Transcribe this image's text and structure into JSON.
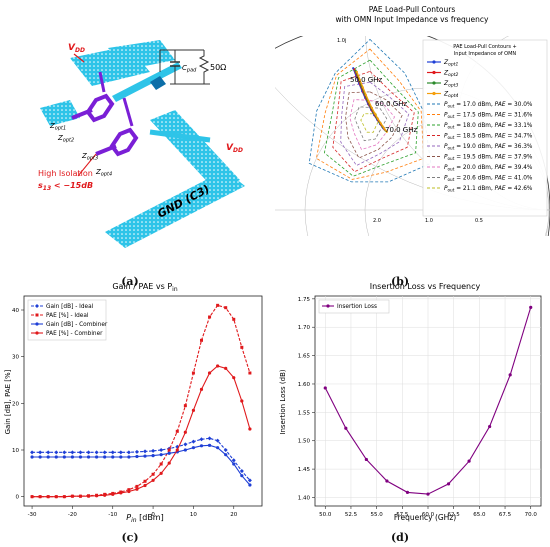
{
  "captions": [
    "(a)",
    "(b)",
    "(c)",
    "(d)"
  ],
  "panel_a": {
    "vdd_top": "V",
    "vdd_top_sub": "DD",
    "vdd_right": "V",
    "vdd_right_sub": "DD",
    "cpad": "C",
    "cpad_sub": "pad",
    "res": "50Ω",
    "z1": "Z",
    "z1_sub": "opt1",
    "z2": "Z",
    "z2_sub": "opt2",
    "z3": "Z",
    "z3_sub": "opt3",
    "z4": "Z",
    "z4_sub": "opt4",
    "iso1": "High Isolation",
    "iso2": "s",
    "iso2_sub": "13",
    "iso2_rest": " < −15dB",
    "gnd": "GND (C3)",
    "colors": {
      "metal": "#2ec4e8",
      "trace": "#7a1fd6",
      "highlight": "#e0191c"
    }
  },
  "chart_data": [
    {
      "type": "smith",
      "title": "PAE Load-Pull Contours",
      "subtitle": "with OMN Input Impedance vs frequency",
      "legend_title": "PAE Load-Pull Contours +",
      "legend_title2": "Input Impedance of OMN",
      "grid_labels": [
        "1.0j",
        "2.0",
        "1.0",
        "0.5"
      ],
      "freq_labels": [
        "50.0 GHz",
        "60.0 GHz",
        "70.0 GHz"
      ],
      "series": [
        {
          "name": "Z",
          "sub": "opt1",
          "color": "#1f3fd6"
        },
        {
          "name": "Z",
          "sub": "opt2",
          "color": "#e0191c"
        },
        {
          "name": "Z",
          "sub": "opt3",
          "color": "#2a8a2a"
        },
        {
          "name": "Z",
          "sub": "opt4",
          "color": "#f59e0b"
        }
      ],
      "contours": [
        {
          "pout": "17.0 dBm",
          "pae": "30.0%",
          "color": "#1f77b4"
        },
        {
          "pout": "17.5 dBm",
          "pae": "31.6%",
          "color": "#ff7f0e"
        },
        {
          "pout": "18.0 dBm",
          "pae": "33.1%",
          "color": "#2ca02c"
        },
        {
          "pout": "18.5 dBm",
          "pae": "34.7%",
          "color": "#d62728"
        },
        {
          "pout": "19.0 dBm",
          "pae": "36.3%",
          "color": "#9467bd"
        },
        {
          "pout": "19.5 dBm",
          "pae": "37.9%",
          "color": "#8c564b"
        },
        {
          "pout": "20.0 dBm",
          "pae": "39.4%",
          "color": "#e377c2"
        },
        {
          "pout": "20.6 dBm",
          "pae": "41.0%",
          "color": "#7f7f7f"
        },
        {
          "pout": "21.1 dBm",
          "pae": "42.6%",
          "color": "#bcbd22"
        }
      ]
    },
    {
      "type": "line",
      "title": "Gain / PAE vs P",
      "title_sub": "in",
      "xlabel": "P",
      "xlabel_sub": "in",
      "xlabel_unit": " [dBm]",
      "ylabel": "Gain [dB], PAE [%]",
      "xlim": [
        -32,
        27
      ],
      "ylim": [
        -2,
        43
      ],
      "xticks": [
        -30,
        -20,
        -10,
        0,
        10,
        20
      ],
      "yticks": [
        0,
        10,
        20,
        30,
        40
      ],
      "x": [
        -30,
        -28,
        -26,
        -24,
        -22,
        -20,
        -18,
        -16,
        -14,
        -12,
        -10,
        -8,
        -6,
        -4,
        -2,
        0,
        2,
        4,
        6,
        8,
        10,
        12,
        14,
        16,
        18,
        20,
        22,
        24
      ],
      "series": [
        {
          "name": "Gain [dB] - Ideal",
          "color": "#1f3fd6",
          "marker": "diamond",
          "dash": true,
          "values": [
            9.5,
            9.5,
            9.5,
            9.5,
            9.5,
            9.5,
            9.5,
            9.5,
            9.5,
            9.5,
            9.5,
            9.5,
            9.5,
            9.6,
            9.7,
            9.8,
            10.0,
            10.3,
            10.7,
            11.2,
            11.8,
            12.3,
            12.5,
            12.0,
            10.0,
            7.8,
            5.5,
            3.5
          ]
        },
        {
          "name": "PAE [%] - Ideal",
          "color": "#e0191c",
          "marker": "square",
          "dash": true,
          "values": [
            0.0,
            0.0,
            0.0,
            0.0,
            0.0,
            0.1,
            0.1,
            0.2,
            0.3,
            0.5,
            0.7,
            1.0,
            1.5,
            2.2,
            3.3,
            4.8,
            7.0,
            10.0,
            14.0,
            19.5,
            26.5,
            33.5,
            38.5,
            41.0,
            40.5,
            38.0,
            32.0,
            26.5
          ]
        },
        {
          "name": "Gain [dB] - Combiner",
          "color": "#1f3fd6",
          "marker": "circle",
          "dash": false,
          "values": [
            8.5,
            8.5,
            8.5,
            8.5,
            8.5,
            8.5,
            8.5,
            8.5,
            8.5,
            8.5,
            8.5,
            8.5,
            8.5,
            8.6,
            8.7,
            8.8,
            9.0,
            9.3,
            9.6,
            10.0,
            10.5,
            10.9,
            11.0,
            10.5,
            9.0,
            7.0,
            4.5,
            2.5
          ]
        },
        {
          "name": "PAE [%] - Combiner",
          "color": "#e0191c",
          "marker": "circle",
          "dash": false,
          "values": [
            0.0,
            0.0,
            0.0,
            0.0,
            0.0,
            0.1,
            0.1,
            0.1,
            0.2,
            0.3,
            0.5,
            0.8,
            1.1,
            1.6,
            2.4,
            3.5,
            5.0,
            7.2,
            10.0,
            13.8,
            18.5,
            23.0,
            26.5,
            28.0,
            27.5,
            25.5,
            20.5,
            14.5
          ]
        }
      ]
    },
    {
      "type": "line",
      "title": "Insertion Loss vs Frequency",
      "xlabel": "Frequency (GHz)",
      "ylabel": "Insertion Loss (dB)",
      "xlim": [
        49.0,
        71.0
      ],
      "ylim": [
        1.385,
        1.755
      ],
      "xticks": [
        50.0,
        52.5,
        55.0,
        57.5,
        60.0,
        62.5,
        65.0,
        67.5,
        70.0
      ],
      "yticks": [
        1.4,
        1.45,
        1.5,
        1.55,
        1.6,
        1.65,
        1.7,
        1.75
      ],
      "series": [
        {
          "name": "Insertion Loss",
          "color": "#800080",
          "x": [
            50.0,
            52.0,
            54.0,
            56.0,
            58.0,
            60.0,
            62.0,
            64.0,
            66.0,
            68.0,
            70.0
          ],
          "values": [
            1.593,
            1.522,
            1.467,
            1.429,
            1.409,
            1.406,
            1.424,
            1.464,
            1.525,
            1.616,
            1.735
          ]
        }
      ]
    }
  ]
}
